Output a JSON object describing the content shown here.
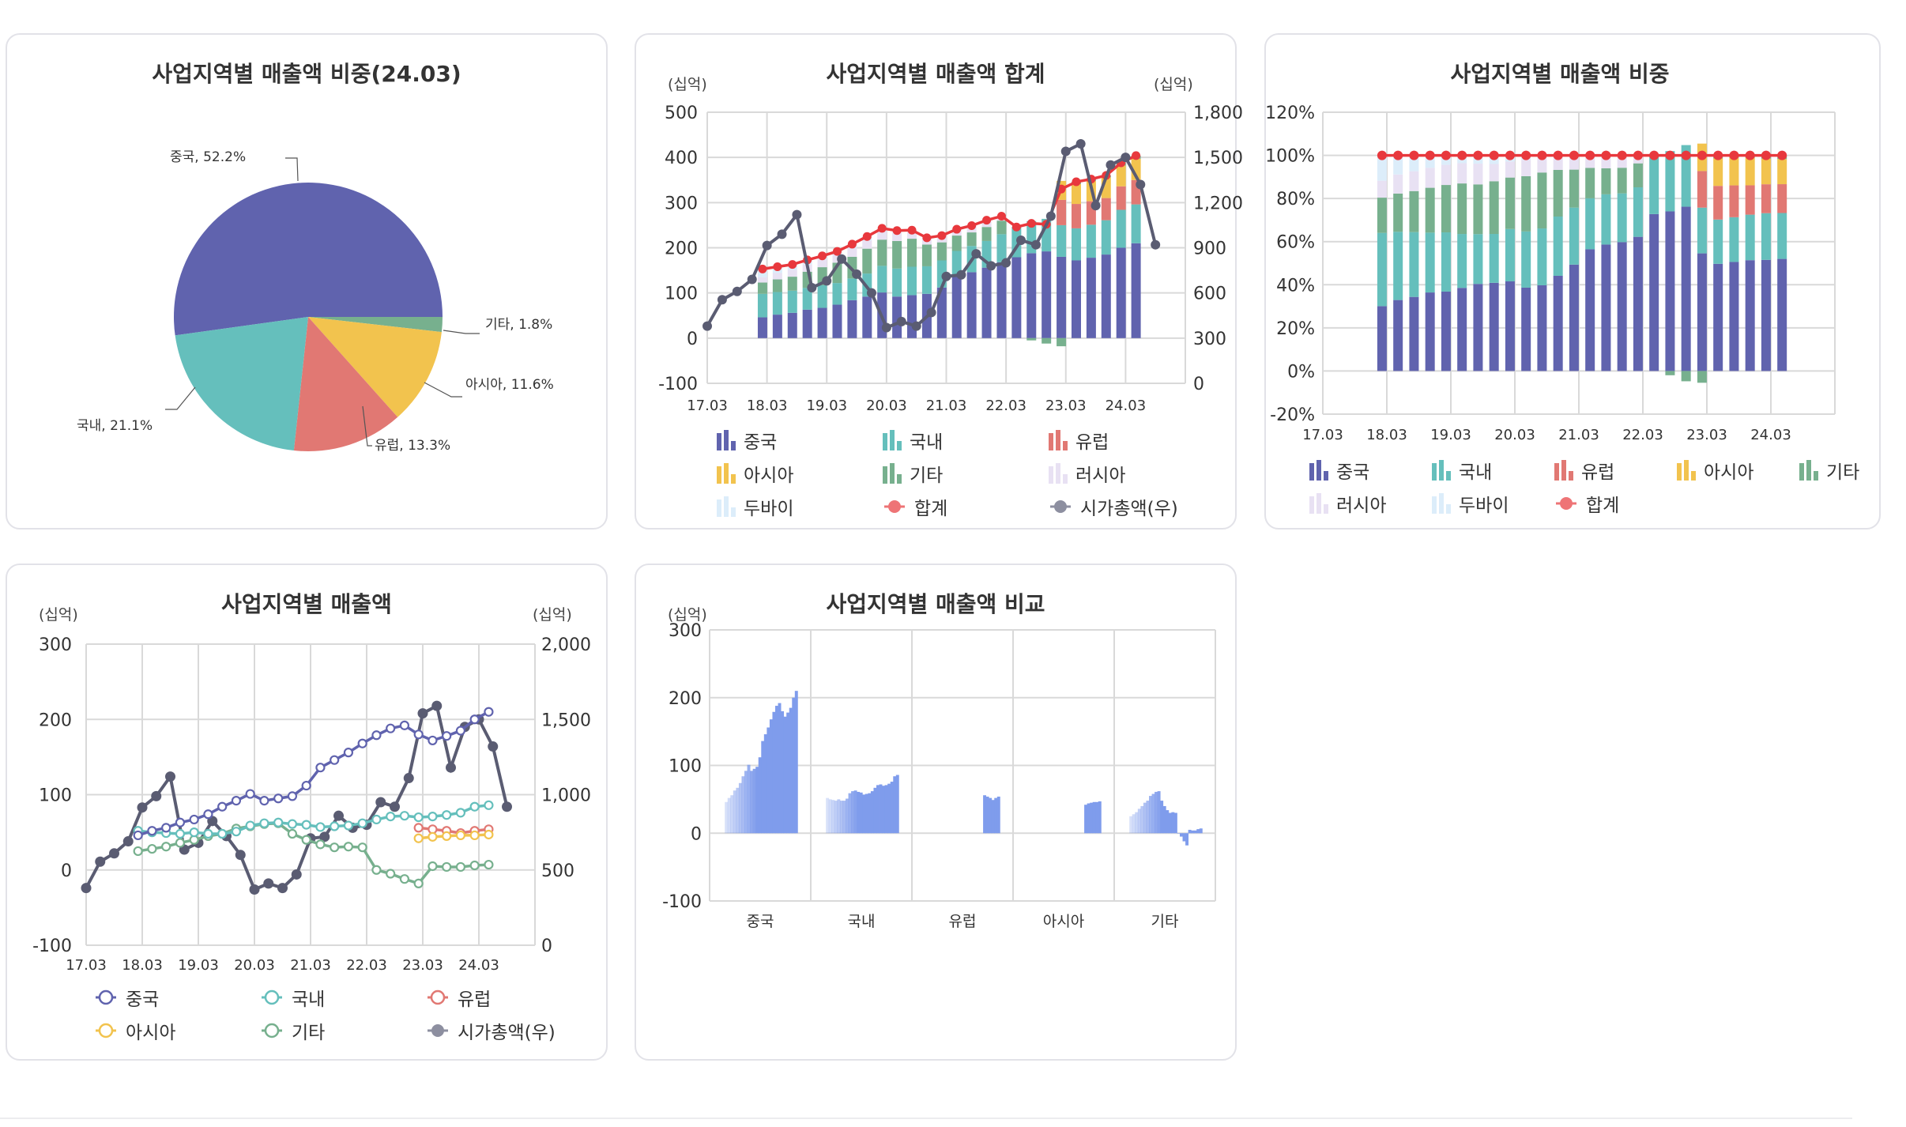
{
  "colors": {
    "china": "#6063ae",
    "domestic": "#65bfbc",
    "europe": "#e17873",
    "asia": "#f2c34e",
    "other": "#77b08e",
    "russia": "#e8e1f3",
    "dubai": "#dcedfa",
    "total": "#e8383d",
    "marketcap": "#5a5c72",
    "compare": "#7f9cec",
    "grid": "#d9d9d9"
  },
  "chart_data": [
    {
      "id": "pie",
      "type": "pie",
      "title": "사업지역별 매출액 비중(24.03)",
      "slices": [
        {
          "name": "중국",
          "value": 52.2,
          "label": "중국, 52.2%"
        },
        {
          "name": "국내",
          "value": 21.1,
          "label": "국내, 21.1%"
        },
        {
          "name": "유럽",
          "value": 13.3,
          "label": "유럽, 13.3%"
        },
        {
          "name": "아시아",
          "value": 11.6,
          "label": "아시아, 11.6%"
        },
        {
          "name": "기타",
          "value": 1.8,
          "label": "기타, 1.8%"
        }
      ]
    },
    {
      "id": "sum",
      "type": "bar",
      "title": "사업지역별 매출액 합계",
      "ylabel_left": "(십억)",
      "ylabel_right": "(십억)",
      "ylim": [
        -100,
        500
      ],
      "yticks": [
        "500",
        "400",
        "300",
        "200",
        "100",
        "0",
        "-100"
      ],
      "ylim_right": [
        0,
        1800
      ],
      "yticks_right": [
        "1,800",
        "1,500",
        "1,200",
        "900",
        "600",
        "300",
        "0"
      ],
      "xticks": [
        "17.03",
        "18.03",
        "19.03",
        "20.03",
        "21.03",
        "22.03",
        "23.03",
        "24.03"
      ],
      "legend": [
        "중국",
        "국내",
        "유럽",
        "아시아",
        "기타",
        "러시아",
        "두바이",
        "합계",
        "시가총액(우)"
      ]
    },
    {
      "id": "share",
      "type": "bar",
      "title": "사업지역별 매출액 비중",
      "ylim": [
        -20,
        120
      ],
      "yticks": [
        "120%",
        "100%",
        "80%",
        "60%",
        "40%",
        "20%",
        "0%",
        "-20%"
      ],
      "xticks": [
        "17.03",
        "18.03",
        "19.03",
        "20.03",
        "21.03",
        "22.03",
        "23.03",
        "24.03"
      ],
      "legend": [
        "중국",
        "국내",
        "유럽",
        "아시아",
        "기타",
        "러시아",
        "두바이",
        "합계"
      ]
    },
    {
      "id": "lines",
      "type": "line",
      "title": "사업지역별 매출액",
      "ylabel_left": "(십억)",
      "ylabel_right": "(십억)",
      "ylim": [
        -100,
        300
      ],
      "yticks": [
        "300",
        "200",
        "100",
        "0",
        "-100"
      ],
      "ylim_right": [
        0,
        2000
      ],
      "yticks_right": [
        "2,000",
        "1,500",
        "1,000",
        "500",
        "0"
      ],
      "xticks": [
        "17.03",
        "18.03",
        "19.03",
        "20.03",
        "21.03",
        "22.03",
        "23.03",
        "24.03"
      ],
      "legend": [
        "중국",
        "국내",
        "유럽",
        "아시아",
        "기타",
        "시가총액(우)"
      ]
    },
    {
      "id": "compare",
      "type": "bar",
      "title": "사업지역별 매출액 비교",
      "ylabel_left": "(십억)",
      "ylim": [
        -100,
        300
      ],
      "yticks": [
        "300",
        "200",
        "100",
        "0",
        "-100"
      ],
      "categories": [
        "중국",
        "국내",
        "유럽",
        "아시아",
        "기타"
      ]
    }
  ],
  "series": {
    "periods": [
      "17.12",
      "18.03",
      "18.06",
      "18.09",
      "18.12",
      "19.03",
      "19.06",
      "19.09",
      "19.12",
      "20.03",
      "20.06",
      "20.09",
      "20.12",
      "21.03",
      "21.06",
      "21.09",
      "21.12",
      "22.03",
      "22.06",
      "22.09",
      "22.12",
      "23.03",
      "23.06",
      "23.09",
      "23.12",
      "24.03"
    ],
    "china": [
      46,
      52,
      56,
      63,
      67,
      74,
      84,
      92,
      101,
      92,
      95,
      98,
      112,
      136,
      146,
      156,
      168,
      179,
      188,
      192,
      180,
      172,
      178,
      185,
      200,
      210
    ],
    "domestic": [
      52,
      50,
      49,
      48,
      50,
      48,
      48,
      51,
      59,
      62,
      63,
      61,
      60,
      57,
      58,
      59,
      62,
      67,
      71,
      72,
      70,
      71,
      73,
      76,
      84,
      86
    ],
    "europe": [
      null,
      null,
      null,
      null,
      null,
      null,
      null,
      null,
      null,
      null,
      null,
      null,
      null,
      null,
      null,
      null,
      null,
      null,
      null,
      null,
      56,
      54,
      52,
      49,
      52,
      54
    ],
    "asia": [
      null,
      null,
      null,
      null,
      null,
      null,
      null,
      null,
      null,
      null,
      null,
      null,
      null,
      null,
      null,
      null,
      null,
      null,
      null,
      null,
      42,
      44,
      45,
      46,
      46,
      47
    ],
    "other": [
      25,
      28,
      31,
      36,
      40,
      45,
      48,
      55,
      58,
      61,
      62,
      48,
      40,
      34,
      30,
      31,
      30,
      0,
      -5,
      -12,
      -18,
      5,
      4,
      4,
      6,
      7
    ],
    "russia": [
      12,
      14,
      15,
      16,
      17,
      18,
      20,
      18,
      18,
      18,
      16,
      14,
      15,
      14,
      15,
      15,
      10,
      0,
      0,
      0,
      0,
      0,
      0,
      0,
      0,
      0
    ],
    "dubai": [
      18,
      14,
      12,
      10,
      8,
      7,
      8,
      9,
      7,
      5,
      3,
      1,
      0,
      0,
      0,
      0,
      0,
      0,
      0,
      0,
      0,
      0,
      0,
      0,
      0,
      0
    ],
    "marketcap_periods": [
      "17.03",
      "17.06",
      "17.09",
      "17.12",
      "18.03",
      "18.06",
      "18.09",
      "18.12",
      "19.03",
      "19.06",
      "19.09",
      "19.12",
      "20.03",
      "20.06",
      "20.09",
      "20.12",
      "21.03",
      "21.06",
      "21.09",
      "21.12",
      "22.03",
      "22.06",
      "22.09",
      "22.12",
      "23.03",
      "23.06",
      "23.09",
      "23.12",
      "24.03",
      "24.06",
      "24.09"
    ],
    "marketcap": [
      380,
      555,
      610,
      690,
      915,
      990,
      1120,
      635,
      680,
      825,
      725,
      600,
      370,
      410,
      380,
      470,
      710,
      720,
      860,
      780,
      800,
      950,
      920,
      1110,
      1540,
      1590,
      1180,
      1450,
      1500,
      1320,
      920
    ]
  }
}
